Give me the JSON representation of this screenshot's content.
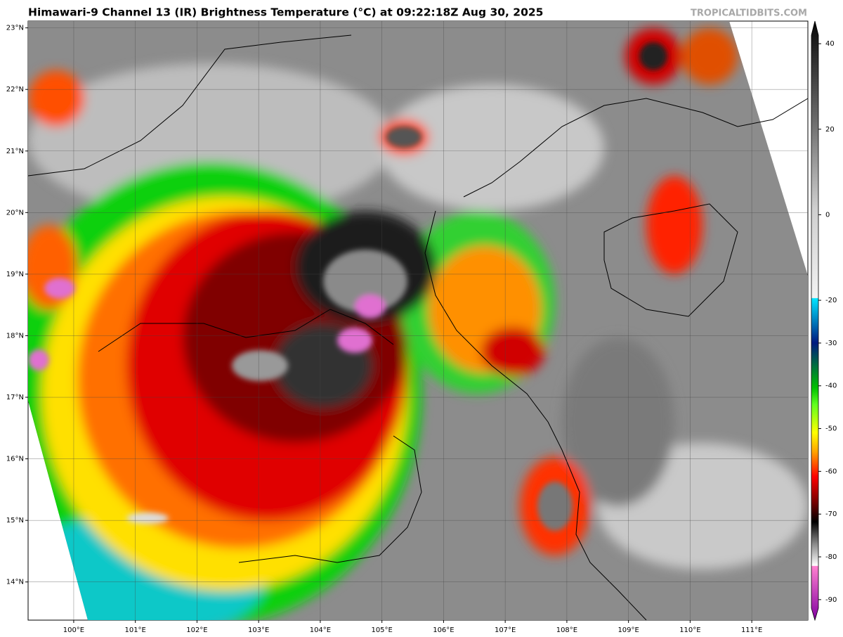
{
  "header": {
    "title": "Himawari-9 Channel 13 (IR) Brightness Temperature (°C) at 09:22:18Z Aug 30, 2025",
    "credit": "TROPICALTIDBITS.COM"
  },
  "map": {
    "lon_lim": [
      99.26,
      111.91
    ],
    "lat_lim": [
      13.38,
      23.11
    ],
    "lon_ticks": [
      {
        "value": 100,
        "label": "100°E"
      },
      {
        "value": 101,
        "label": "101°E"
      },
      {
        "value": 102,
        "label": "102°E"
      },
      {
        "value": 103,
        "label": "103°E"
      },
      {
        "value": 104,
        "label": "104°E"
      },
      {
        "value": 105,
        "label": "105°E"
      },
      {
        "value": 106,
        "label": "106°E"
      },
      {
        "value": 107,
        "label": "107°E"
      },
      {
        "value": 108,
        "label": "108°E"
      },
      {
        "value": 109,
        "label": "109°E"
      },
      {
        "value": 110,
        "label": "110°E"
      },
      {
        "value": 111,
        "label": "111°E"
      }
    ],
    "lat_ticks": [
      {
        "value": 23,
        "label": "23°N"
      },
      {
        "value": 22,
        "label": "22°N"
      },
      {
        "value": 21,
        "label": "21°N"
      },
      {
        "value": 20,
        "label": "20°N"
      },
      {
        "value": 19,
        "label": "19°N"
      },
      {
        "value": 18,
        "label": "18°N"
      },
      {
        "value": 17,
        "label": "17°N"
      },
      {
        "value": 16,
        "label": "16°N"
      },
      {
        "value": 15,
        "label": "15°N"
      },
      {
        "value": 14,
        "label": "14°N"
      }
    ]
  },
  "colorbar": {
    "lim": [
      -92,
      42
    ],
    "ticks": [
      40,
      20,
      0,
      -20,
      -30,
      -40,
      -50,
      -60,
      -70,
      -80,
      -90
    ]
  }
}
